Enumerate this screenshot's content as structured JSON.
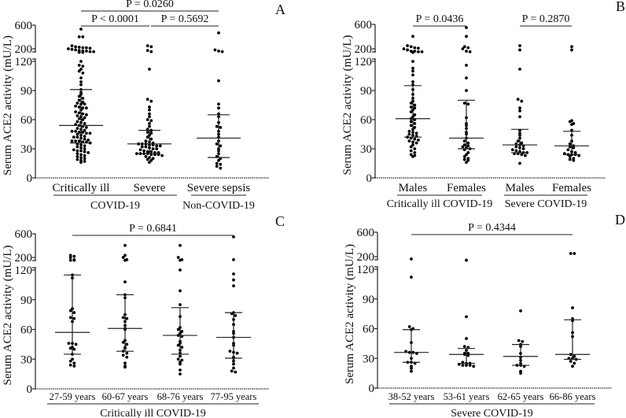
{
  "chart_data": [
    {
      "panel": "A",
      "type": "scatter",
      "ylabel": "Serum ACE2 activity (mU/L)",
      "yticks": [
        "0",
        "30",
        "60",
        "90",
        "120",
        "200",
        "600"
      ],
      "ylim": [
        0,
        600
      ],
      "y_axis_break": [
        120,
        150
      ],
      "groups": [
        {
          "label": "Critically ill",
          "median": 54,
          "q1": 36,
          "q3": 91,
          "values": [
            500,
            350,
            350,
            230,
            220,
            215,
            210,
            210,
            205,
            200,
            195,
            190,
            185,
            180,
            180,
            175,
            175,
            170,
            170,
            120,
            116,
            115,
            112,
            110,
            108,
            103,
            99,
            96,
            91,
            88,
            86,
            84,
            82,
            80,
            78,
            77,
            76,
            76,
            74,
            73,
            72,
            72,
            70,
            68,
            67,
            66,
            65,
            64,
            63,
            62,
            61,
            60,
            58,
            57,
            56,
            55,
            54,
            53,
            52,
            51,
            50,
            49,
            48,
            48,
            47,
            47,
            46,
            46,
            45,
            44,
            43,
            42,
            42,
            41,
            40,
            39,
            38,
            38,
            38,
            37,
            37,
            36,
            35,
            34,
            33,
            32,
            31,
            30,
            29,
            28,
            28,
            27,
            26,
            25,
            24,
            23,
            22,
            21,
            20,
            19,
            18,
            17,
            16
          ]
        },
        {
          "label": "Severe",
          "median": 35,
          "q1": 25,
          "q3": 49,
          "values": [
            230,
            220,
            185,
            175,
            112,
            81,
            79,
            73,
            70,
            66,
            63,
            60,
            59,
            56,
            53,
            50,
            49,
            47,
            46,
            44,
            42,
            40,
            38,
            37,
            36,
            35,
            35,
            35,
            34,
            34,
            33,
            33,
            32,
            32,
            31,
            30,
            30,
            29,
            28,
            27,
            27,
            26,
            26,
            25,
            25,
            25,
            25,
            24,
            24,
            24,
            23,
            22,
            21,
            20,
            19,
            18,
            16
          ]
        },
        {
          "label": "Severe sepsis",
          "median": 41,
          "q1": 21,
          "q3": 65,
          "values": [
            420,
            190,
            180,
            175,
            100,
            76,
            72,
            66,
            63,
            57,
            53,
            52,
            48,
            45,
            42,
            38,
            35,
            33,
            30,
            28,
            25,
            22,
            20,
            18,
            15,
            14,
            12,
            10
          ]
        }
      ],
      "comparisons": [
        {
          "from": 0,
          "to": 2,
          "label": "P = 0.0260"
        },
        {
          "from": 0,
          "to": 1,
          "label": "P < 0.0001"
        },
        {
          "from": 1,
          "to": 2,
          "label": "P = 0.5692"
        }
      ],
      "group_labels": [
        {
          "label": "COVID-19",
          "groups": [
            0,
            1
          ]
        },
        {
          "label": "Non-COVID-19",
          "groups": [
            2
          ]
        }
      ]
    },
    {
      "panel": "B",
      "type": "scatter",
      "ylabel": "Serum ACE2 activity (mU/L)",
      "yticks": [
        "0",
        "30",
        "60",
        "90",
        "120",
        "200",
        "600"
      ],
      "ylim": [
        0,
        600
      ],
      "y_axis_break": [
        120,
        150
      ],
      "groups": [
        {
          "label": "Males",
          "median": 61,
          "q1": 42,
          "q3": 95,
          "values": [
            350,
            230,
            220,
            210,
            205,
            200,
            190,
            180,
            180,
            175,
            175,
            170,
            120,
            113,
            110,
            106,
            99,
            96,
            91,
            86,
            82,
            79,
            77,
            75,
            73,
            72,
            70,
            68,
            65,
            63,
            61,
            60,
            58,
            56,
            54,
            52,
            50,
            48,
            47,
            46,
            45,
            44,
            43,
            42,
            41,
            40,
            39,
            38,
            37,
            36,
            34,
            32,
            30,
            28,
            26,
            24,
            23,
            22
          ]
        },
        {
          "label": "Females",
          "median": 41,
          "q1": 30,
          "q3": 80,
          "values": [
            520,
            350,
            220,
            210,
            200,
            180,
            175,
            116,
            103,
            90,
            77,
            76,
            62,
            56,
            54,
            51,
            47,
            45,
            41,
            38,
            36,
            34,
            33,
            32,
            31,
            30,
            29,
            26,
            24,
            22,
            20,
            19,
            18,
            16
          ]
        },
        {
          "label": "Males",
          "median": 34,
          "q1": 26,
          "q3": 50,
          "values": [
            230,
            190,
            112,
            81,
            79,
            72,
            69,
            63,
            49,
            46,
            44,
            41,
            38,
            36,
            35,
            34,
            33,
            32,
            31,
            30,
            29,
            28,
            27,
            26,
            26,
            25,
            25,
            24,
            23,
            15
          ]
        },
        {
          "label": "Females",
          "median": 33,
          "q1": 24,
          "q3": 48,
          "values": [
            220,
            190,
            59,
            58,
            56,
            55,
            49,
            44,
            38,
            35,
            33,
            32,
            31,
            29,
            27,
            26,
            25,
            24,
            24,
            24,
            23,
            22,
            20,
            19,
            18
          ]
        }
      ],
      "comparisons": [
        {
          "from": 0,
          "to": 1,
          "label": "P = 0.0436"
        },
        {
          "from": 2,
          "to": 3,
          "label": "P = 0.2870"
        }
      ],
      "group_labels": [
        {
          "label": "Critically ill COVID-19",
          "groups": [
            0,
            1
          ]
        },
        {
          "label": "Severe COVID-19",
          "groups": [
            2,
            3
          ]
        }
      ]
    },
    {
      "panel": "C",
      "type": "scatter",
      "ylabel": "Serum ACE2 activity (mU/L)",
      "yticks": [
        "0",
        "30",
        "60",
        "90",
        "120",
        "200",
        "600"
      ],
      "ylim": [
        0,
        600
      ],
      "y_axis_break": [
        120,
        150
      ],
      "groups": [
        {
          "label": "27-59 years",
          "median": 57,
          "q1": 35,
          "q3": 115,
          "values": [
            220,
            210,
            200,
            180,
            175,
            175,
            115,
            112,
            81,
            79,
            77,
            72,
            71,
            68,
            46,
            46,
            45,
            42,
            41,
            40,
            35,
            30,
            28,
            26,
            24,
            23
          ]
        },
        {
          "label": "60-67 years",
          "median": 61,
          "q1": 38,
          "q3": 95,
          "values": [
            350,
            220,
            200,
            180,
            175,
            108,
            95,
            92,
            75,
            72,
            71,
            68,
            64,
            61,
            60,
            49,
            47,
            45,
            42,
            41,
            38,
            36,
            34,
            32,
            26,
            23,
            22
          ]
        },
        {
          "label": "68-76 years",
          "median": 54,
          "q1": 35,
          "q3": 82,
          "values": [
            350,
            200,
            180,
            175,
            120,
            99,
            85,
            73,
            62,
            60,
            58,
            56,
            54,
            53,
            48,
            46,
            44,
            42,
            39,
            36,
            33,
            30,
            29,
            27,
            25,
            19,
            15
          ]
        },
        {
          "label": "77-95 years",
          "median": 52,
          "q1": 31,
          "q3": 77,
          "values": [
            520,
            180,
            116,
            110,
            104,
            77,
            76,
            74,
            70,
            65,
            58,
            56,
            52,
            46,
            44,
            38,
            37,
            36,
            32,
            31,
            28,
            25,
            21,
            18,
            17
          ]
        }
      ],
      "comparisons": [
        {
          "from": 0,
          "to": 3,
          "label": "P = 0.6841"
        }
      ],
      "group_labels": [
        {
          "label": "Critically ill COVID-19",
          "groups": [
            0,
            1,
            2,
            3
          ]
        }
      ]
    },
    {
      "panel": "D",
      "type": "scatter",
      "ylabel": "Serum ACE2 activity (mU/L)",
      "yticks": [
        "0",
        "30",
        "60",
        "90",
        "120",
        "200",
        "600"
      ],
      "ylim": [
        0,
        600
      ],
      "y_axis_break": [
        120,
        150
      ],
      "groups": [
        {
          "label": "38-52 years",
          "median": 36,
          "q1": 26,
          "q3": 59,
          "values": [
            180,
            112,
            62,
            60,
            59,
            46,
            37,
            36,
            36,
            35,
            30,
            26,
            26,
            25,
            22,
            20,
            17
          ]
        },
        {
          "label": "53-61 years",
          "median": 34,
          "q1": 25,
          "q3": 40,
          "values": [
            170,
            72,
            50,
            42,
            41,
            38,
            35,
            35,
            34,
            33,
            26,
            25,
            25,
            24,
            23,
            23,
            23,
            22
          ]
        },
        {
          "label": "62-65 years",
          "median": 32,
          "q1": 23,
          "q3": 44,
          "values": [
            78,
            48,
            47,
            44,
            42,
            35,
            31,
            28,
            25,
            23,
            23,
            22,
            17,
            15
          ]
        },
        {
          "label": "66-86 years",
          "median": 34,
          "q1": 29,
          "q3": 69,
          "values": [
            230,
            230,
            81,
            70,
            68,
            56,
            52,
            34,
            32,
            30,
            30,
            29,
            27,
            25,
            22
          ]
        }
      ],
      "comparisons": [
        {
          "from": 0,
          "to": 3,
          "label": "P = 0.4344"
        }
      ],
      "group_labels": [
        {
          "label": "Severe COVID-19",
          "groups": [
            0,
            1,
            2,
            3
          ]
        }
      ]
    }
  ]
}
